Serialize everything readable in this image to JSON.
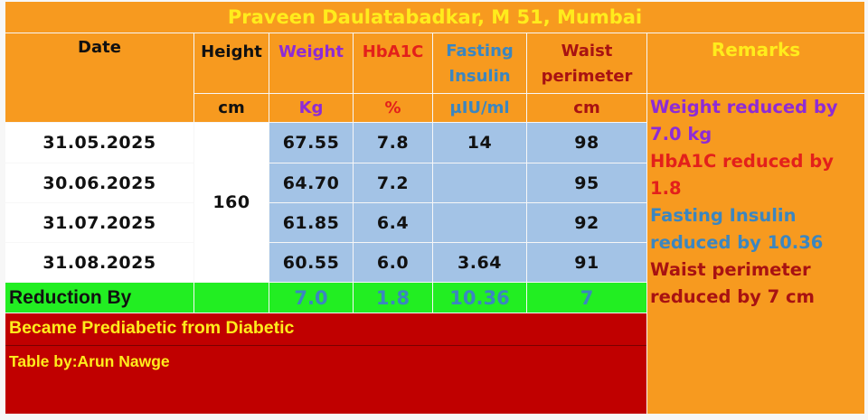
{
  "title": "Praveen Daulatabadkar, M 51, Mumbai",
  "table": {
    "headers": [
      {
        "label": "Date"
      },
      {
        "label": "Height"
      },
      {
        "label": "Weight"
      },
      {
        "label": "HbA1C"
      },
      {
        "line1": "Fasting",
        "line2": "Insulin"
      },
      {
        "line1": "Waist",
        "line2": "perimeter"
      }
    ],
    "units": {
      "height": "cm",
      "weight": "Kg",
      "hba1c": "%",
      "fasting_insulin": "µIU/ml",
      "waist": "cm"
    },
    "height_value": "160",
    "rows": [
      {
        "date": "31.05.2025",
        "weight": "67.55",
        "hba1c": "7.8",
        "fasting_insulin": "14",
        "waist": "98"
      },
      {
        "date": "30.06.2025",
        "weight": "64.70",
        "hba1c": "7.2",
        "fasting_insulin": "",
        "waist": "95"
      },
      {
        "date": "31.07.2025",
        "weight": "61.85",
        "hba1c": "6.4",
        "fasting_insulin": "",
        "waist": "92"
      },
      {
        "date": "31.08.2025",
        "weight": "60.55",
        "hba1c": "6.0",
        "fasting_insulin": "3.64",
        "waist": "91"
      }
    ],
    "reduction": {
      "label": "Reduction By",
      "weight": "7.0",
      "hba1c": "1.8",
      "fasting_insulin": "10.36",
      "waist": "7"
    }
  },
  "remarks": {
    "title": "Remarks",
    "items": [
      "Weight reduced by\n7.0 kg",
      "HbA1C reduced by\n1.8",
      "Fasting Insulin\nreduced by 10.36",
      "Waist perimeter\nreduced by 7 cm"
    ]
  },
  "footer": {
    "note": "Became Prediabetic from Diabetic",
    "credit": "Table by:Arun Nawge"
  },
  "colors": {
    "orange": "#f79a1f",
    "yellow_text": "#ffec1c",
    "blue_cell": "#a3c3e6",
    "green_row": "#22ee22",
    "red_footer": "#c00000",
    "purple": "#8e2bd6",
    "red": "#e3201b",
    "teal": "#3b86c0",
    "maroon": "#a81212"
  }
}
